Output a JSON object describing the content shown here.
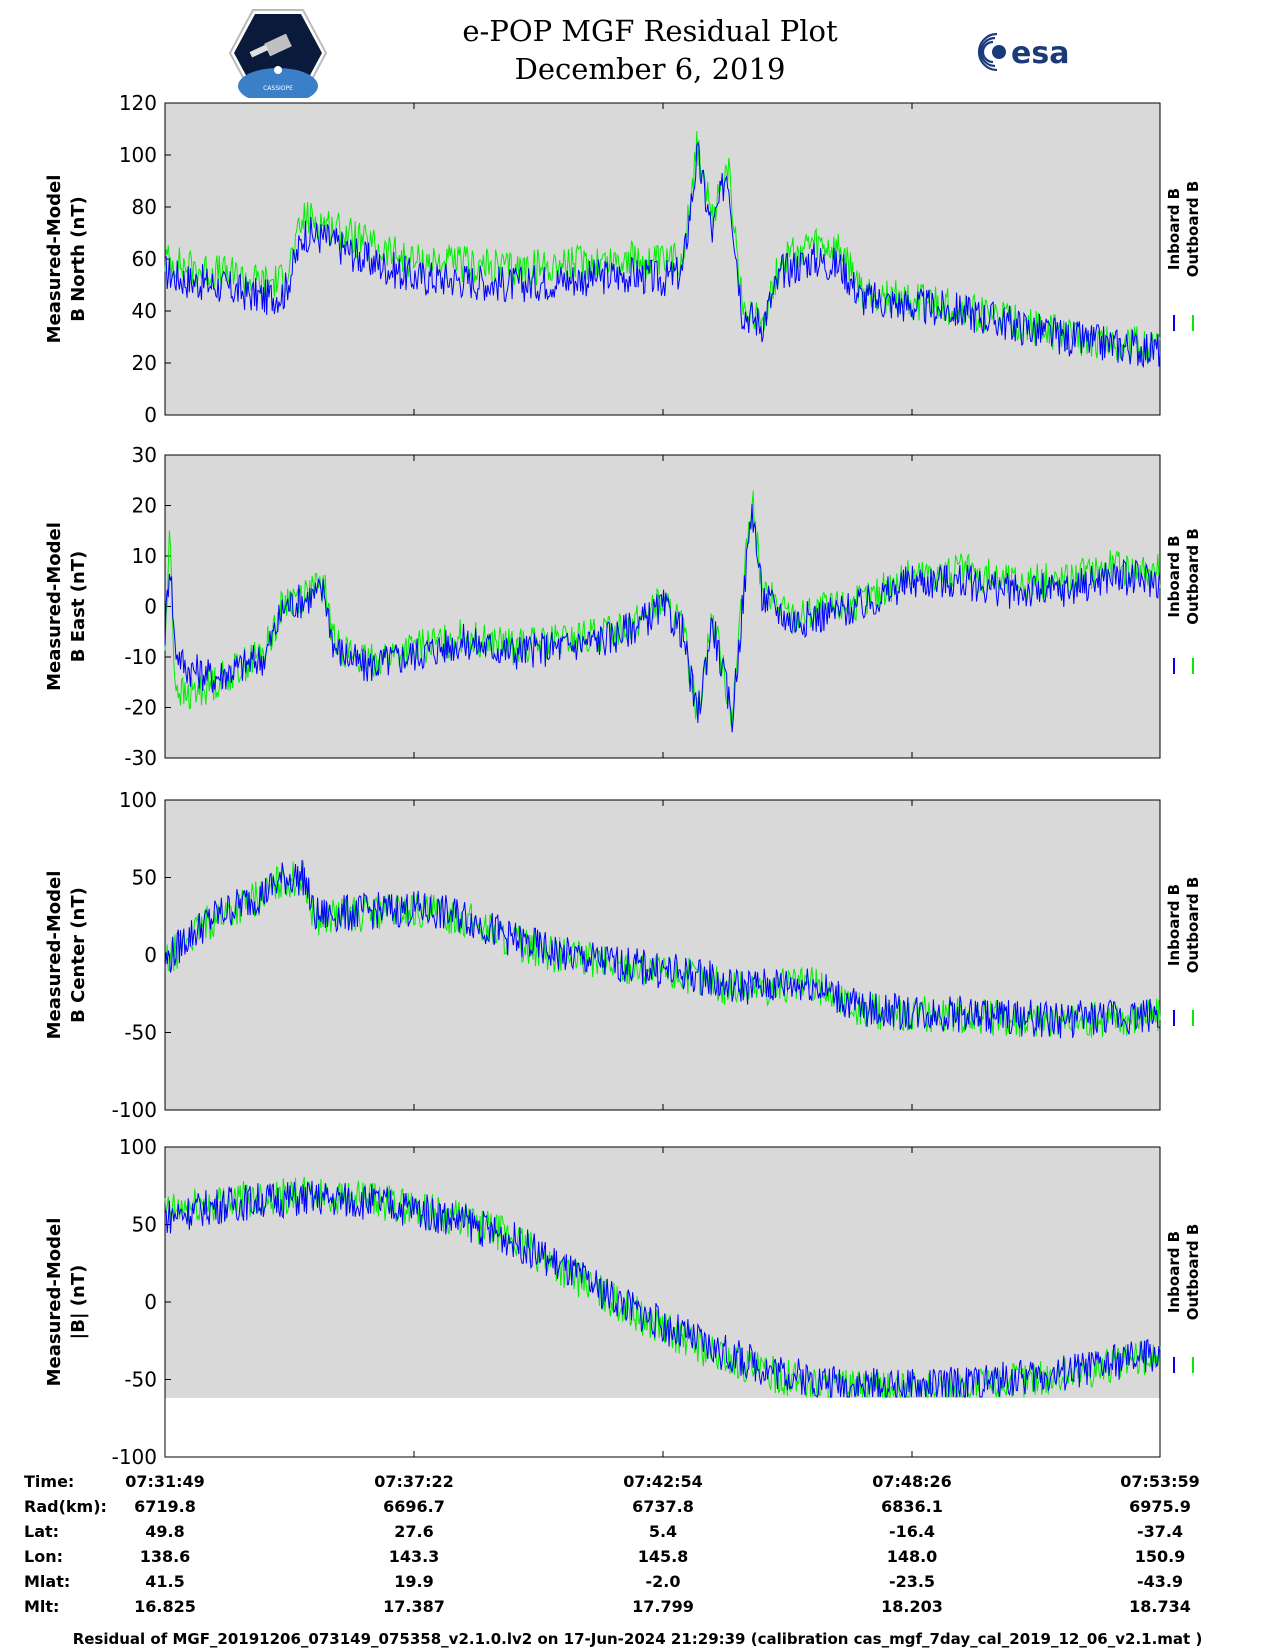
{
  "header": {
    "title_line1": "e-POP MGF Residual Plot",
    "title_line2": "December 6, 2019",
    "logo_left_text": "CASSIOPE",
    "logo_right_text": "esa"
  },
  "colors": {
    "inboard": "#0000ff",
    "outboard": "#00ee00",
    "panel_bg": "#d9d9d9"
  },
  "chart_data": [
    {
      "type": "line",
      "title": "",
      "ylabel_line1": "Measured-Model",
      "ylabel_line2": "B North (nT)",
      "ylim": [
        0,
        120
      ],
      "yticks": [
        0,
        20,
        40,
        60,
        80,
        100,
        120
      ],
      "legend": [
        "Inboard B",
        "Outboard B"
      ],
      "legend_position": "right",
      "series": [
        {
          "name": "Inboard B",
          "x": [
            0,
            0.02,
            0.05,
            0.1,
            0.12,
            0.14,
            0.16,
            0.2,
            0.25,
            0.3,
            0.35,
            0.4,
            0.47,
            0.5,
            0.52,
            0.535,
            0.55,
            0.565,
            0.58,
            0.6,
            0.62,
            0.65,
            0.68,
            0.7,
            0.75,
            0.8,
            0.85,
            0.9,
            0.95,
            1.0
          ],
          "values": [
            55,
            52,
            50,
            45,
            47,
            70,
            68,
            60,
            53,
            52,
            50,
            52,
            54,
            52,
            55,
            100,
            70,
            95,
            40,
            35,
            55,
            60,
            57,
            45,
            42,
            40,
            35,
            30,
            27,
            25
          ]
        },
        {
          "name": "Outboard B",
          "x": [
            0,
            0.02,
            0.05,
            0.1,
            0.12,
            0.14,
            0.16,
            0.2,
            0.25,
            0.3,
            0.35,
            0.4,
            0.47,
            0.5,
            0.52,
            0.535,
            0.55,
            0.565,
            0.58,
            0.6,
            0.62,
            0.65,
            0.68,
            0.7,
            0.75,
            0.8,
            0.85,
            0.9,
            0.95,
            1.0
          ],
          "values": [
            60,
            57,
            55,
            51,
            52,
            76,
            74,
            66,
            59,
            58,
            56,
            58,
            60,
            58,
            61,
            104,
            74,
            98,
            42,
            37,
            60,
            65,
            62,
            47,
            44,
            41,
            36,
            31,
            28,
            26
          ]
        }
      ]
    },
    {
      "type": "line",
      "title": "",
      "ylabel_line1": "Measured-Model",
      "ylabel_line2": "B East (nT)",
      "ylim": [
        -30,
        30
      ],
      "yticks": [
        -30,
        -20,
        -10,
        0,
        10,
        20,
        30
      ],
      "legend": [
        "Inboard B",
        "Outboard B"
      ],
      "legend_position": "right",
      "series": [
        {
          "name": "Inboard B",
          "x": [
            0,
            0.005,
            0.01,
            0.02,
            0.05,
            0.1,
            0.12,
            0.16,
            0.17,
            0.2,
            0.3,
            0.35,
            0.4,
            0.45,
            0.48,
            0.5,
            0.52,
            0.535,
            0.55,
            0.57,
            0.59,
            0.6,
            0.63,
            0.7,
            0.75,
            0.8,
            0.85,
            0.9,
            0.95,
            1.0
          ],
          "values": [
            -5,
            10,
            -8,
            -12,
            -14,
            -10,
            0,
            3,
            -8,
            -12,
            -7,
            -9,
            -8,
            -6,
            -3,
            0,
            -5,
            -22,
            -3,
            -22,
            20,
            2,
            -3,
            0,
            5,
            5,
            3,
            3,
            6,
            5
          ]
        },
        {
          "name": "Outboard B",
          "x": [
            0,
            0.005,
            0.01,
            0.02,
            0.05,
            0.1,
            0.12,
            0.16,
            0.17,
            0.2,
            0.3,
            0.35,
            0.4,
            0.45,
            0.48,
            0.5,
            0.52,
            0.535,
            0.55,
            0.57,
            0.59,
            0.6,
            0.63,
            0.7,
            0.75,
            0.8,
            0.85,
            0.9,
            0.95,
            1.0
          ],
          "values": [
            -8,
            15,
            -15,
            -18,
            -15,
            -9,
            1,
            4,
            -7,
            -11,
            -6,
            -8,
            -7,
            -5,
            -2,
            1,
            -4,
            -21,
            -2,
            -21,
            22,
            3,
            -2,
            1,
            6,
            7,
            5,
            5,
            8,
            7
          ]
        }
      ]
    },
    {
      "type": "line",
      "title": "",
      "ylabel_line1": "Measured-Model",
      "ylabel_line2": "B Center (nT)",
      "ylim": [
        -100,
        100
      ],
      "yticks": [
        -100,
        -50,
        0,
        50,
        100
      ],
      "legend": [
        "Inboard B",
        "Outboard B"
      ],
      "legend_position": "right",
      "series": [
        {
          "name": "Inboard B",
          "x": [
            0,
            0.02,
            0.05,
            0.1,
            0.12,
            0.14,
            0.15,
            0.2,
            0.25,
            0.3,
            0.35,
            0.4,
            0.45,
            0.5,
            0.55,
            0.56,
            0.6,
            0.65,
            0.7,
            0.75,
            0.8,
            0.85,
            0.9,
            0.95,
            1.0
          ],
          "values": [
            -5,
            10,
            25,
            40,
            50,
            50,
            25,
            28,
            30,
            25,
            10,
            0,
            -5,
            -10,
            -15,
            -20,
            -20,
            -18,
            -35,
            -37,
            -38,
            -40,
            -42,
            -40,
            -38
          ]
        },
        {
          "name": "Outboard B",
          "x": [
            0,
            0.02,
            0.05,
            0.1,
            0.12,
            0.14,
            0.15,
            0.2,
            0.25,
            0.3,
            0.35,
            0.4,
            0.45,
            0.5,
            0.55,
            0.56,
            0.6,
            0.65,
            0.7,
            0.75,
            0.8,
            0.85,
            0.9,
            0.95,
            1.0
          ],
          "values": [
            -6,
            9,
            24,
            39,
            49,
            49,
            24,
            27,
            29,
            24,
            9,
            -1,
            -6,
            -11,
            -16,
            -21,
            -21,
            -19,
            -36,
            -38,
            -39,
            -41,
            -43,
            -41,
            -39
          ]
        }
      ]
    },
    {
      "type": "line",
      "title": "",
      "ylabel_line1": "Measured-Model",
      "ylabel_line2": "|B| (nT)",
      "ylim": [
        -100,
        100
      ],
      "yticks": [
        -100,
        -50,
        0,
        50,
        100
      ],
      "legend": [
        "Inboard B",
        "Outboard B"
      ],
      "legend_position": "right",
      "series": [
        {
          "name": "Inboard B",
          "x": [
            0,
            0.05,
            0.1,
            0.15,
            0.2,
            0.25,
            0.3,
            0.35,
            0.4,
            0.45,
            0.5,
            0.55,
            0.6,
            0.65,
            0.7,
            0.75,
            0.8,
            0.85,
            0.9,
            0.95,
            1.0
          ],
          "values": [
            55,
            62,
            66,
            67,
            65,
            60,
            52,
            40,
            22,
            3,
            -15,
            -30,
            -42,
            -50,
            -54,
            -55,
            -53,
            -50,
            -46,
            -40,
            -33
          ]
        },
        {
          "name": "Outboard B",
          "x": [
            0,
            0.05,
            0.1,
            0.15,
            0.2,
            0.25,
            0.3,
            0.35,
            0.4,
            0.45,
            0.5,
            0.55,
            0.6,
            0.65,
            0.7,
            0.75,
            0.8,
            0.85,
            0.9,
            0.95,
            1.0
          ],
          "values": [
            58,
            64,
            68,
            69,
            66,
            61,
            53,
            41,
            21,
            1,
            -17,
            -33,
            -45,
            -53,
            -57,
            -57,
            -55,
            -51,
            -47,
            -41,
            -34
          ]
        }
      ]
    }
  ],
  "table": {
    "labels": [
      "Time:",
      "Rad(km):",
      "Lat:",
      "Lon:",
      "Mlat:",
      "Mlt:"
    ],
    "columns": [
      [
        "07:31:49",
        "6719.8",
        "49.8",
        "138.6",
        "41.5",
        "16.825"
      ],
      [
        "07:37:22",
        "6696.7",
        "27.6",
        "143.3",
        "19.9",
        "17.387"
      ],
      [
        "07:42:54",
        "6737.8",
        "5.4",
        "145.8",
        "-2.0",
        "17.799"
      ],
      [
        "07:48:26",
        "6836.1",
        "-16.4",
        "148.0",
        "-23.5",
        "18.203"
      ],
      [
        "07:53:59",
        "6975.9",
        "-37.4",
        "150.9",
        "-43.9",
        "18.734"
      ]
    ]
  },
  "footer": "Residual of MGF_20191206_073149_075358_v2.1.0.lv2 on 17-Jun-2024 21:29:39 (calibration cas_mgf_7day_cal_2019_12_06_v2.1.mat )"
}
